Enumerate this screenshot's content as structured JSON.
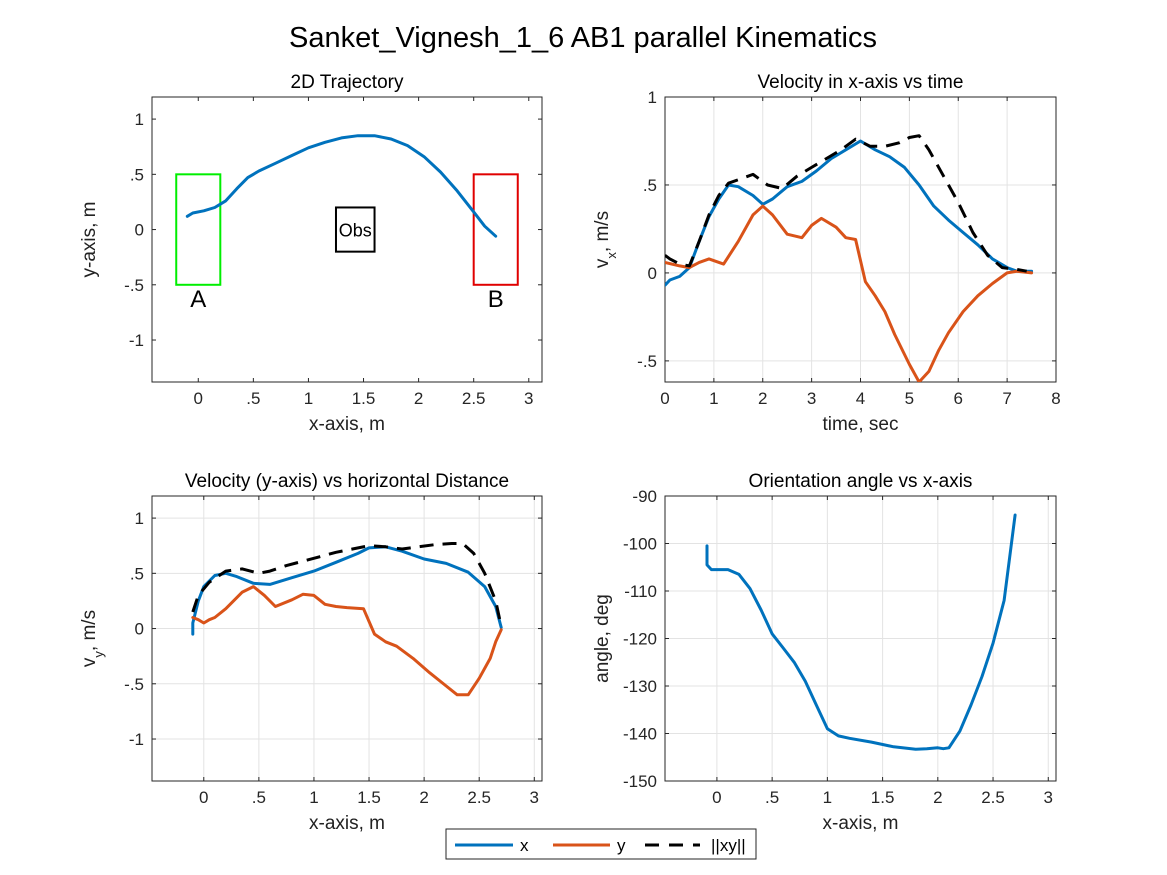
{
  "figure_title": "Sanket_Vignesh_1_6    AB1    parallel    Kinematics",
  "colors": {
    "x": "#0072BD",
    "y": "#D95319",
    "xy": "#000000",
    "start_box": "#00EE00",
    "end_box": "#E00000",
    "obstacle": "#000000"
  },
  "legend": {
    "entries": [
      {
        "key": "x",
        "label": "x"
      },
      {
        "key": "y",
        "label": "y"
      },
      {
        "key": "xy",
        "label": "||xy||"
      }
    ]
  },
  "chart_data": [
    {
      "id": "trajectory",
      "type": "line",
      "title": "2D Trajectory",
      "xlabel": "x-axis, m",
      "ylabel": "y-axis, m",
      "xlim": [
        -0.42,
        3.12
      ],
      "ylim": [
        -1.38,
        1.2
      ],
      "xticks": [
        0,
        0.5,
        1,
        1.5,
        2,
        2.5,
        3
      ],
      "yticks": [
        -1,
        -0.5,
        0,
        0.5,
        1
      ],
      "grid": false,
      "series": [
        {
          "key": "x",
          "x": [
            -0.1,
            -0.05,
            0.05,
            0.15,
            0.25,
            0.35,
            0.45,
            0.55,
            0.7,
            0.85,
            1.0,
            1.15,
            1.3,
            1.45,
            1.6,
            1.75,
            1.9,
            2.05,
            2.2,
            2.35,
            2.5,
            2.6,
            2.7
          ],
          "y": [
            0.12,
            0.15,
            0.17,
            0.2,
            0.26,
            0.37,
            0.47,
            0.53,
            0.6,
            0.67,
            0.74,
            0.79,
            0.83,
            0.85,
            0.85,
            0.82,
            0.76,
            0.66,
            0.52,
            0.35,
            0.16,
            0.03,
            -0.06
          ]
        }
      ],
      "annotations": [
        {
          "type": "rect",
          "role": "start",
          "x": [
            -0.2,
            0.2
          ],
          "y": [
            -0.5,
            0.5
          ],
          "label": "A"
        },
        {
          "type": "rect",
          "role": "end",
          "x": [
            2.5,
            2.9
          ],
          "y": [
            -0.5,
            0.5
          ],
          "label": "B"
        },
        {
          "type": "rect",
          "role": "obstacle",
          "x": [
            1.25,
            1.6
          ],
          "y": [
            -0.2,
            0.2
          ],
          "label": "Obs"
        }
      ]
    },
    {
      "id": "vx_time",
      "type": "line",
      "title": "Velocity in x-axis vs time",
      "xlabel": "time, sec",
      "ylabel": "v_x, m/s",
      "xlim": [
        0,
        8
      ],
      "ylim": [
        -0.62,
        1.0
      ],
      "xticks": [
        0,
        1,
        2,
        3,
        4,
        5,
        6,
        7,
        8
      ],
      "yticks": [
        -0.5,
        0,
        0.5,
        1
      ],
      "grid": true,
      "series": [
        {
          "key": "x",
          "x": [
            0,
            0.1,
            0.3,
            0.5,
            0.7,
            0.9,
            1.1,
            1.3,
            1.5,
            1.8,
            2.0,
            2.2,
            2.5,
            2.8,
            3.1,
            3.4,
            3.7,
            4.0,
            4.3,
            4.6,
            4.9,
            5.2,
            5.5,
            5.8,
            6.1,
            6.4,
            6.7,
            7.0,
            7.2,
            7.4,
            7.5
          ],
          "y": [
            -0.07,
            -0.04,
            -0.02,
            0.03,
            0.18,
            0.32,
            0.42,
            0.5,
            0.49,
            0.44,
            0.39,
            0.42,
            0.49,
            0.52,
            0.58,
            0.65,
            0.7,
            0.75,
            0.7,
            0.66,
            0.6,
            0.5,
            0.38,
            0.3,
            0.23,
            0.16,
            0.08,
            0.03,
            0.01,
            0.01,
            0.01
          ]
        },
        {
          "key": "y",
          "x": [
            0,
            0.3,
            0.5,
            0.7,
            0.9,
            1.2,
            1.5,
            1.8,
            2.0,
            2.2,
            2.5,
            2.8,
            3.0,
            3.2,
            3.5,
            3.7,
            3.9,
            4.1,
            4.3,
            4.5,
            4.7,
            5.0,
            5.2,
            5.4,
            5.6,
            5.8,
            6.1,
            6.4,
            6.7,
            7.0,
            7.2,
            7.5
          ],
          "y": [
            0.06,
            0.04,
            0.03,
            0.06,
            0.08,
            0.05,
            0.18,
            0.33,
            0.38,
            0.33,
            0.22,
            0.2,
            0.27,
            0.31,
            0.26,
            0.2,
            0.19,
            -0.05,
            -0.13,
            -0.22,
            -0.35,
            -0.52,
            -0.62,
            -0.56,
            -0.44,
            -0.34,
            -0.22,
            -0.13,
            -0.06,
            0.0,
            0.01,
            0.0
          ]
        },
        {
          "key": "xy",
          "x": [
            0,
            0.1,
            0.3,
            0.5,
            0.7,
            0.9,
            1.1,
            1.3,
            1.5,
            1.8,
            2.1,
            2.4,
            2.7,
            3.0,
            3.3,
            3.6,
            3.9,
            4.2,
            4.5,
            4.8,
            5.0,
            5.2,
            5.4,
            5.7,
            6.0,
            6.3,
            6.6,
            6.9,
            7.2,
            7.4
          ],
          "y": [
            0.1,
            0.08,
            0.05,
            0.04,
            0.18,
            0.33,
            0.44,
            0.51,
            0.53,
            0.56,
            0.5,
            0.48,
            0.55,
            0.6,
            0.65,
            0.7,
            0.76,
            0.72,
            0.72,
            0.74,
            0.77,
            0.78,
            0.7,
            0.55,
            0.4,
            0.23,
            0.1,
            0.03,
            0.02,
            0.01
          ]
        }
      ]
    },
    {
      "id": "vy_dist",
      "type": "line",
      "title": "Velocity (y-axis) vs horizontal Distance",
      "xlabel": "x-axis, m",
      "ylabel": "v_y, m/s",
      "xlim": [
        -0.47,
        3.07
      ],
      "ylim": [
        -1.38,
        1.2
      ],
      "xticks": [
        0,
        0.5,
        1,
        1.5,
        2,
        2.5,
        3
      ],
      "yticks": [
        -1,
        -0.5,
        0,
        0.5,
        1
      ],
      "grid": true,
      "series": [
        {
          "key": "x",
          "x": [
            -0.1,
            -0.1,
            -0.05,
            0.0,
            0.1,
            0.2,
            0.3,
            0.45,
            0.6,
            0.8,
            1.0,
            1.2,
            1.4,
            1.5,
            1.65,
            1.8,
            2.0,
            2.2,
            2.4,
            2.55,
            2.65,
            2.7
          ],
          "y": [
            -0.05,
            0.05,
            0.25,
            0.38,
            0.48,
            0.5,
            0.47,
            0.41,
            0.4,
            0.46,
            0.52,
            0.6,
            0.68,
            0.73,
            0.74,
            0.7,
            0.63,
            0.59,
            0.51,
            0.38,
            0.2,
            0.01
          ]
        },
        {
          "key": "y",
          "x": [
            -0.1,
            -0.05,
            0.0,
            0.05,
            0.1,
            0.2,
            0.35,
            0.45,
            0.55,
            0.65,
            0.8,
            0.9,
            1.0,
            1.1,
            1.2,
            1.3,
            1.45,
            1.55,
            1.65,
            1.75,
            1.9,
            2.05,
            2.2,
            2.3,
            2.4,
            2.5,
            2.6,
            2.65,
            2.7
          ],
          "y": [
            0.1,
            0.08,
            0.05,
            0.08,
            0.1,
            0.18,
            0.33,
            0.38,
            0.3,
            0.2,
            0.26,
            0.31,
            0.3,
            0.22,
            0.2,
            0.19,
            0.18,
            -0.05,
            -0.12,
            -0.16,
            -0.27,
            -0.4,
            -0.52,
            -0.6,
            -0.6,
            -0.45,
            -0.27,
            -0.12,
            -0.01
          ]
        },
        {
          "key": "xy",
          "x": [
            -0.1,
            -0.05,
            0.05,
            0.2,
            0.35,
            0.5,
            0.6,
            0.75,
            0.9,
            1.05,
            1.2,
            1.35,
            1.5,
            1.65,
            1.8,
            1.95,
            2.1,
            2.25,
            2.35,
            2.45,
            2.55,
            2.65,
            2.7
          ],
          "y": [
            0.15,
            0.3,
            0.42,
            0.52,
            0.54,
            0.5,
            0.52,
            0.57,
            0.61,
            0.65,
            0.69,
            0.72,
            0.75,
            0.74,
            0.72,
            0.74,
            0.76,
            0.77,
            0.77,
            0.68,
            0.5,
            0.25,
            0.02
          ]
        }
      ]
    },
    {
      "id": "orientation",
      "type": "line",
      "title": "Orientation angle vs x-axis",
      "xlabel": "x-axis, m",
      "ylabel": "angle, deg",
      "xlim": [
        -0.47,
        3.07
      ],
      "ylim": [
        -150,
        -90
      ],
      "xticks": [
        0,
        0.5,
        1,
        1.5,
        2,
        2.5,
        3
      ],
      "yticks": [
        -150,
        -140,
        -130,
        -120,
        -110,
        -100,
        -90
      ],
      "grid": true,
      "series": [
        {
          "key": "x",
          "x": [
            -0.09,
            -0.09,
            -0.05,
            0.0,
            0.1,
            0.2,
            0.3,
            0.4,
            0.5,
            0.6,
            0.7,
            0.8,
            0.9,
            1.0,
            1.1,
            1.2,
            1.4,
            1.6,
            1.8,
            1.9,
            2.0,
            2.05,
            2.1,
            2.2,
            2.3,
            2.4,
            2.5,
            2.6,
            2.65,
            2.7
          ],
          "y": [
            -100.5,
            -104.5,
            -105.5,
            -105.5,
            -105.5,
            -106.5,
            -109.5,
            -114,
            -119,
            -122,
            -125,
            -129,
            -134,
            -139,
            -140.5,
            -141,
            -141.8,
            -142.8,
            -143.3,
            -143.2,
            -143,
            -143.2,
            -143,
            -139.5,
            -134,
            -128,
            -121,
            -112,
            -103,
            -94
          ]
        }
      ]
    }
  ]
}
